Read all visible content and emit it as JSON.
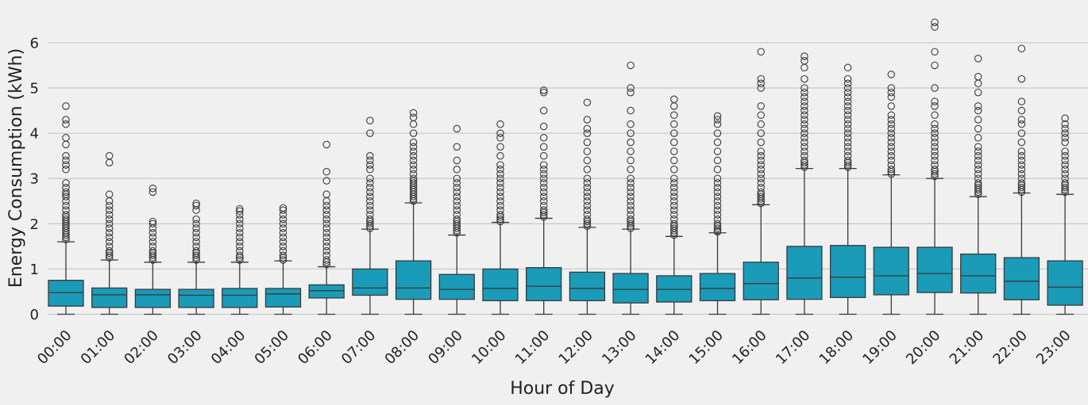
{
  "chart_data": {
    "type": "box",
    "title": "",
    "xlabel": "Hour of Day",
    "ylabel": "Energy Consumption (kWh)",
    "ylim": [
      -0.4,
      6.6
    ],
    "yticks": [
      0,
      1,
      2,
      3,
      4,
      5,
      6
    ],
    "grid": true,
    "colors": {
      "box": "#1a9bb8",
      "edge": "#3a3a3a",
      "grid": "#cbcbcb",
      "background": "#f0f0f0"
    },
    "categories": [
      "00:00",
      "01:00",
      "02:00",
      "03:00",
      "04:00",
      "05:00",
      "06:00",
      "07:00",
      "08:00",
      "09:00",
      "10:00",
      "11:00",
      "12:00",
      "13:00",
      "14:00",
      "15:00",
      "16:00",
      "17:00",
      "18:00",
      "19:00",
      "20:00",
      "21:00",
      "22:00",
      "23:00"
    ],
    "boxes": [
      {
        "whislo": 0,
        "q1": 0.18,
        "med": 0.48,
        "q3": 0.75,
        "whishi": 1.6,
        "fliers": [
          1.65,
          1.7,
          1.75,
          1.8,
          1.85,
          1.9,
          1.95,
          2.0,
          2.05,
          2.1,
          2.15,
          2.2,
          2.3,
          2.4,
          2.5,
          2.6,
          2.65,
          2.7,
          2.8,
          2.9,
          3.2,
          3.3,
          3.4,
          3.5,
          3.75,
          3.9,
          4.2,
          4.3,
          4.6
        ]
      },
      {
        "whislo": 0,
        "q1": 0.15,
        "med": 0.43,
        "q3": 0.58,
        "whishi": 1.2,
        "fliers": [
          1.25,
          1.3,
          1.35,
          1.4,
          1.5,
          1.6,
          1.7,
          1.8,
          1.9,
          2.0,
          2.1,
          2.2,
          2.3,
          2.4,
          2.5,
          2.65,
          3.35,
          3.5
        ]
      },
      {
        "whislo": 0,
        "q1": 0.15,
        "med": 0.43,
        "q3": 0.55,
        "whishi": 1.15,
        "fliers": [
          1.2,
          1.25,
          1.3,
          1.35,
          1.4,
          1.5,
          1.6,
          1.7,
          1.8,
          1.9,
          2.0,
          2.05,
          2.7,
          2.78
        ]
      },
      {
        "whislo": 0,
        "q1": 0.15,
        "med": 0.42,
        "q3": 0.55,
        "whishi": 1.15,
        "fliers": [
          1.2,
          1.25,
          1.3,
          1.35,
          1.4,
          1.5,
          1.6,
          1.7,
          1.8,
          1.9,
          2.0,
          2.1,
          2.3,
          2.4,
          2.45
        ]
      },
      {
        "whislo": 0,
        "q1": 0.15,
        "med": 0.42,
        "q3": 0.57,
        "whishi": 1.15,
        "fliers": [
          1.2,
          1.25,
          1.3,
          1.4,
          1.5,
          1.6,
          1.7,
          1.8,
          1.9,
          2.0,
          2.1,
          2.2,
          2.28,
          2.33
        ]
      },
      {
        "whislo": 0,
        "q1": 0.16,
        "med": 0.45,
        "q3": 0.57,
        "whishi": 1.18,
        "fliers": [
          1.2,
          1.25,
          1.3,
          1.4,
          1.5,
          1.6,
          1.7,
          1.8,
          1.9,
          2.0,
          2.1,
          2.2,
          2.3,
          2.35
        ]
      },
      {
        "whislo": 0,
        "q1": 0.36,
        "med": 0.52,
        "q3": 0.65,
        "whishi": 1.05,
        "fliers": [
          1.1,
          1.15,
          1.2,
          1.3,
          1.4,
          1.5,
          1.6,
          1.7,
          1.8,
          1.9,
          2.0,
          2.1,
          2.2,
          2.3,
          2.4,
          2.5,
          2.65,
          2.95,
          3.15,
          3.75
        ]
      },
      {
        "whislo": 0,
        "q1": 0.42,
        "med": 0.58,
        "q3": 1.0,
        "whishi": 1.88,
        "fliers": [
          1.9,
          1.95,
          2.0,
          2.05,
          2.1,
          2.2,
          2.3,
          2.4,
          2.5,
          2.6,
          2.7,
          2.8,
          2.9,
          3.0,
          3.2,
          3.3,
          3.4,
          3.5,
          4.0,
          4.28
        ]
      },
      {
        "whislo": 0,
        "q1": 0.33,
        "med": 0.58,
        "q3": 1.18,
        "whishi": 2.46,
        "fliers": [
          2.5,
          2.55,
          2.6,
          2.65,
          2.7,
          2.75,
          2.8,
          2.85,
          2.9,
          2.95,
          3.0,
          3.1,
          3.2,
          3.3,
          3.4,
          3.5,
          3.6,
          3.7,
          3.8,
          4.0,
          4.2,
          4.35,
          4.45
        ]
      },
      {
        "whislo": 0,
        "q1": 0.33,
        "med": 0.55,
        "q3": 0.88,
        "whishi": 1.75,
        "fliers": [
          1.8,
          1.85,
          1.9,
          1.95,
          2.0,
          2.05,
          2.1,
          2.2,
          2.3,
          2.4,
          2.5,
          2.6,
          2.7,
          2.8,
          2.9,
          3.0,
          3.2,
          3.4,
          3.7,
          4.1
        ]
      },
      {
        "whislo": 0,
        "q1": 0.3,
        "med": 0.57,
        "q3": 1.0,
        "whishi": 2.03,
        "fliers": [
          2.05,
          2.1,
          2.15,
          2.2,
          2.3,
          2.4,
          2.5,
          2.6,
          2.7,
          2.8,
          2.9,
          3.0,
          3.1,
          3.2,
          3.3,
          3.5,
          3.7,
          3.9,
          4.0,
          4.2
        ]
      },
      {
        "whislo": 0,
        "q1": 0.3,
        "med": 0.62,
        "q3": 1.03,
        "whishi": 2.12,
        "fliers": [
          2.15,
          2.2,
          2.25,
          2.3,
          2.4,
          2.5,
          2.6,
          2.7,
          2.8,
          2.9,
          3.0,
          3.1,
          3.2,
          3.3,
          3.5,
          3.7,
          3.9,
          4.15,
          4.5,
          4.9,
          4.95
        ]
      },
      {
        "whislo": 0,
        "q1": 0.3,
        "med": 0.57,
        "q3": 0.93,
        "whishi": 1.92,
        "fliers": [
          1.95,
          2.0,
          2.05,
          2.1,
          2.2,
          2.3,
          2.4,
          2.5,
          2.6,
          2.7,
          2.8,
          2.9,
          3.0,
          3.2,
          3.4,
          3.6,
          3.8,
          4.0,
          4.1,
          4.3,
          4.68
        ]
      },
      {
        "whislo": 0,
        "q1": 0.25,
        "med": 0.55,
        "q3": 0.9,
        "whishi": 1.88,
        "fliers": [
          1.9,
          1.95,
          2.0,
          2.05,
          2.1,
          2.2,
          2.3,
          2.4,
          2.5,
          2.6,
          2.7,
          2.8,
          2.9,
          3.0,
          3.2,
          3.4,
          3.6,
          3.8,
          4.0,
          4.2,
          4.5,
          4.9,
          5.0,
          5.5
        ]
      },
      {
        "whislo": 0,
        "q1": 0.27,
        "med": 0.55,
        "q3": 0.85,
        "whishi": 1.72,
        "fliers": [
          1.75,
          1.8,
          1.85,
          1.9,
          1.95,
          2.0,
          2.1,
          2.2,
          2.3,
          2.4,
          2.5,
          2.6,
          2.7,
          2.8,
          2.9,
          3.0,
          3.2,
          3.4,
          3.6,
          3.8,
          4.0,
          4.2,
          4.4,
          4.6,
          4.75
        ]
      },
      {
        "whislo": 0,
        "q1": 0.3,
        "med": 0.57,
        "q3": 0.9,
        "whishi": 1.8,
        "fliers": [
          1.82,
          1.85,
          1.9,
          1.95,
          2.0,
          2.1,
          2.2,
          2.3,
          2.4,
          2.5,
          2.6,
          2.7,
          2.8,
          2.9,
          3.0,
          3.2,
          3.4,
          3.6,
          3.8,
          4.0,
          4.2,
          4.3,
          4.38
        ]
      },
      {
        "whislo": 0,
        "q1": 0.32,
        "med": 0.68,
        "q3": 1.15,
        "whishi": 2.42,
        "fliers": [
          2.45,
          2.5,
          2.55,
          2.6,
          2.65,
          2.7,
          2.8,
          2.9,
          3.0,
          3.1,
          3.2,
          3.3,
          3.4,
          3.5,
          3.6,
          3.8,
          4.0,
          4.2,
          4.4,
          4.6,
          5.0,
          5.1,
          5.2,
          5.8
        ]
      },
      {
        "whislo": 0,
        "q1": 0.33,
        "med": 0.8,
        "q3": 1.5,
        "whishi": 3.22,
        "fliers": [
          3.25,
          3.3,
          3.35,
          3.4,
          3.5,
          3.6,
          3.7,
          3.8,
          3.9,
          4.0,
          4.1,
          4.2,
          4.3,
          4.4,
          4.5,
          4.6,
          4.7,
          4.8,
          4.9,
          5.0,
          5.2,
          5.45,
          5.6,
          5.7
        ]
      },
      {
        "whislo": 0,
        "q1": 0.37,
        "med": 0.82,
        "q3": 1.52,
        "whishi": 3.22,
        "fliers": [
          3.25,
          3.3,
          3.35,
          3.4,
          3.5,
          3.6,
          3.7,
          3.8,
          3.9,
          4.0,
          4.1,
          4.2,
          4.3,
          4.4,
          4.5,
          4.6,
          4.7,
          4.8,
          4.9,
          5.0,
          5.1,
          5.2,
          5.45
        ]
      },
      {
        "whislo": 0,
        "q1": 0.43,
        "med": 0.85,
        "q3": 1.48,
        "whishi": 3.08,
        "fliers": [
          3.1,
          3.15,
          3.2,
          3.3,
          3.4,
          3.5,
          3.6,
          3.7,
          3.8,
          3.9,
          4.0,
          4.1,
          4.2,
          4.3,
          4.4,
          4.6,
          4.8,
          4.9,
          5.0,
          5.3
        ]
      },
      {
        "whislo": 0,
        "q1": 0.48,
        "med": 0.9,
        "q3": 1.48,
        "whishi": 3.0,
        "fliers": [
          3.05,
          3.1,
          3.15,
          3.2,
          3.3,
          3.4,
          3.5,
          3.6,
          3.7,
          3.8,
          3.9,
          4.0,
          4.1,
          4.2,
          4.4,
          4.6,
          4.7,
          5.0,
          5.5,
          5.8,
          6.35,
          6.45
        ]
      },
      {
        "whislo": 0,
        "q1": 0.47,
        "med": 0.85,
        "q3": 1.33,
        "whishi": 2.6,
        "fliers": [
          2.65,
          2.7,
          2.75,
          2.8,
          2.85,
          2.9,
          3.0,
          3.1,
          3.2,
          3.3,
          3.4,
          3.5,
          3.6,
          3.7,
          3.9,
          4.1,
          4.3,
          4.5,
          4.6,
          4.9,
          5.1,
          5.25,
          5.65
        ]
      },
      {
        "whislo": 0,
        "q1": 0.32,
        "med": 0.73,
        "q3": 1.25,
        "whishi": 2.68,
        "fliers": [
          2.7,
          2.75,
          2.8,
          2.85,
          2.9,
          3.0,
          3.1,
          3.2,
          3.3,
          3.4,
          3.5,
          3.6,
          3.8,
          4.0,
          4.2,
          4.3,
          4.5,
          4.7,
          5.2,
          5.87
        ]
      },
      {
        "whislo": 0,
        "q1": 0.2,
        "med": 0.6,
        "q3": 1.18,
        "whishi": 2.65,
        "fliers": [
          2.7,
          2.75,
          2.8,
          2.85,
          2.9,
          3.0,
          3.1,
          3.2,
          3.3,
          3.4,
          3.5,
          3.6,
          3.8,
          3.9,
          4.0,
          4.1,
          4.2,
          4.33
        ]
      }
    ]
  }
}
